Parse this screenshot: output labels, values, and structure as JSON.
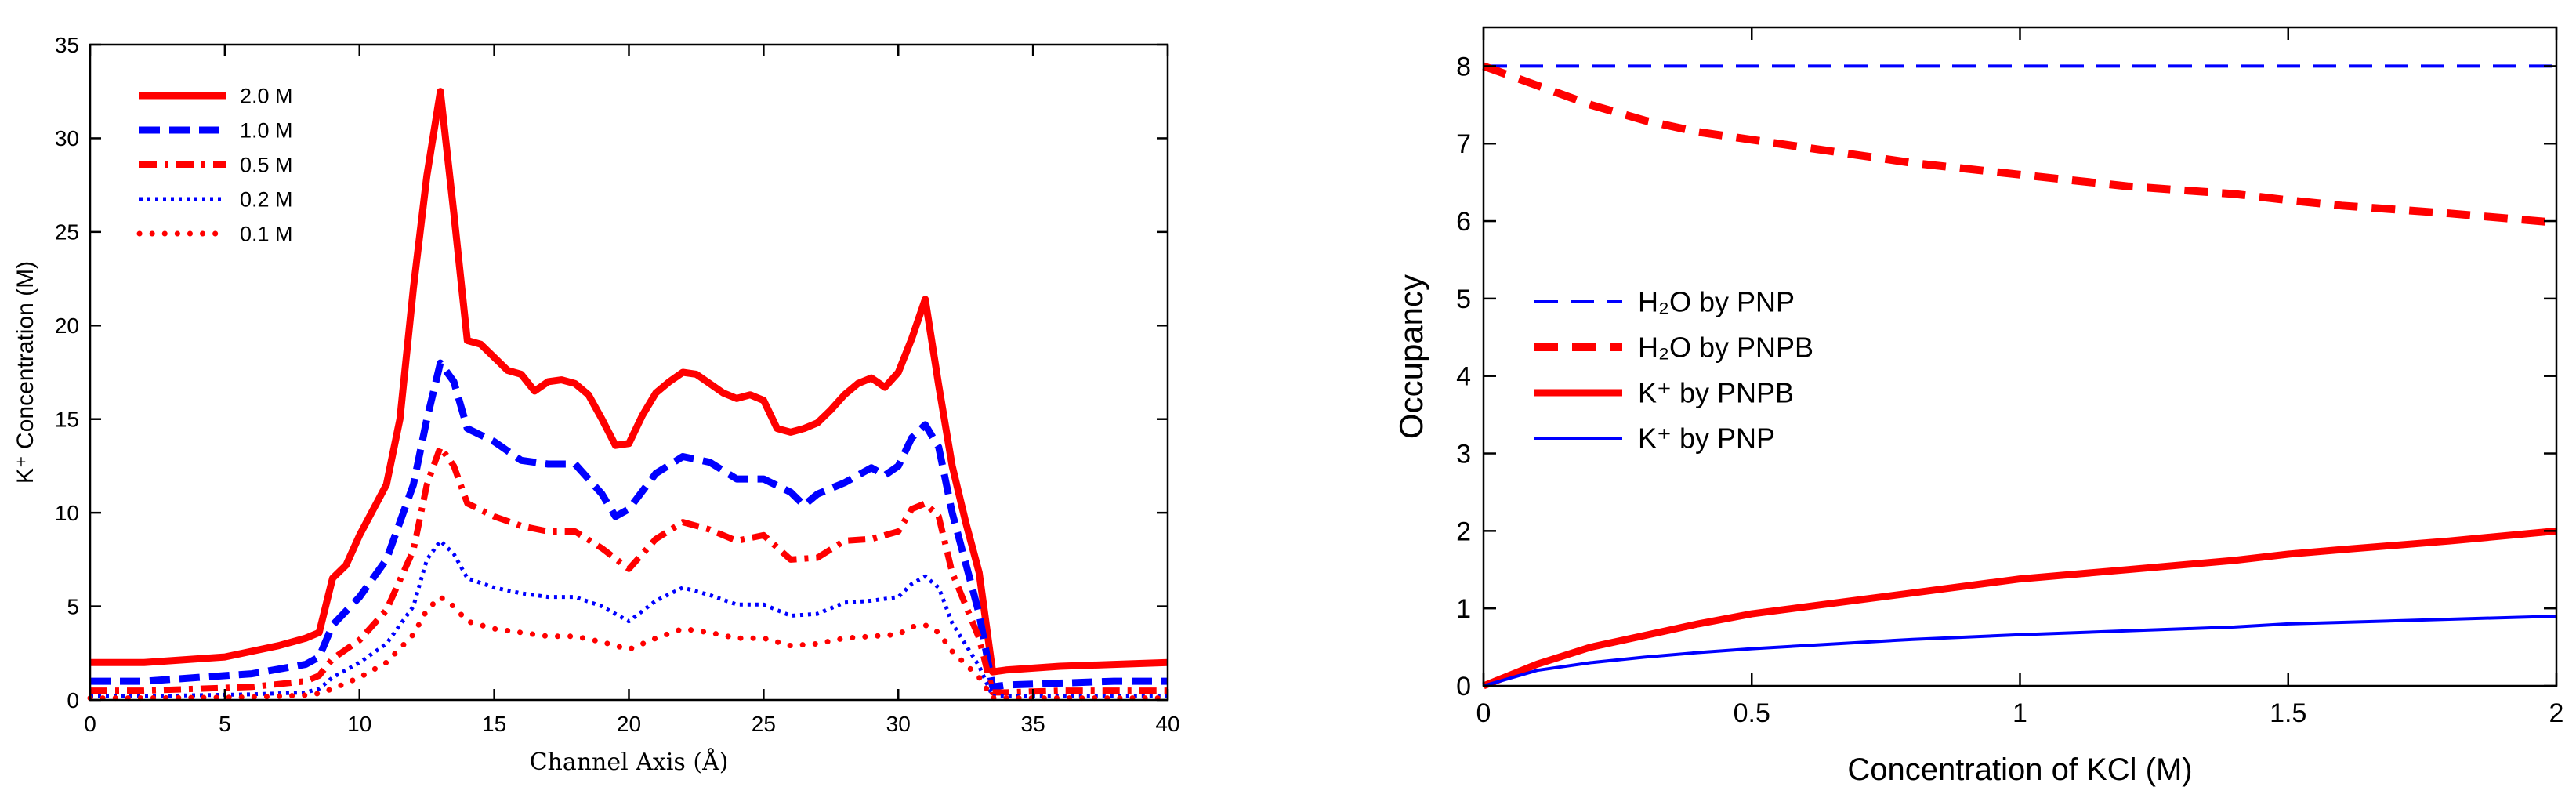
{
  "chart_data": [
    {
      "type": "line",
      "title": "",
      "xlabel": "Channel Axis (Å)",
      "ylabel": "K⁺ Concentration (M)",
      "xlim": [
        0,
        40
      ],
      "ylim": [
        0,
        35
      ],
      "xticks": [
        "0",
        "5",
        "10",
        "15",
        "20",
        "25",
        "30",
        "35",
        "40"
      ],
      "yticks": [
        "0",
        "5",
        "10",
        "15",
        "20",
        "25",
        "30",
        "35"
      ],
      "grid": false,
      "legend_position": "top-left",
      "series": [
        {
          "name": "2.0 M",
          "color": "#ff0000",
          "style": "solid",
          "x": [
            0,
            2,
            4,
            5,
            6,
            7,
            8,
            8.5,
            9,
            9.5,
            10,
            11,
            11.5,
            12,
            12.5,
            13,
            13.5,
            14,
            14.5,
            15,
            15.5,
            16,
            16.5,
            17,
            17.5,
            18,
            18.5,
            19,
            19.5,
            20,
            20.5,
            21,
            21.5,
            22,
            22.5,
            23,
            23.5,
            24,
            24.5,
            25,
            25.5,
            26,
            26.5,
            27,
            27.5,
            28,
            28.5,
            29,
            29.5,
            30,
            30.5,
            31,
            31.5,
            32,
            32.5,
            33,
            33.5,
            34,
            36,
            38,
            40
          ],
          "y": [
            2,
            2,
            2.2,
            2.3,
            2.6,
            2.9,
            3.3,
            3.6,
            6.5,
            7.2,
            8.8,
            11.5,
            15,
            22,
            28,
            32.5,
            26,
            19.2,
            19,
            18.3,
            17.6,
            17.4,
            16.5,
            17,
            17.1,
            16.9,
            16.3,
            15,
            13.6,
            13.7,
            15.2,
            16.4,
            17,
            17.5,
            17.4,
            16.9,
            16.4,
            16.1,
            16.3,
            16,
            14.5,
            14.3,
            14.5,
            14.8,
            15.5,
            16.3,
            16.9,
            17.2,
            16.7,
            17.5,
            19.3,
            21.4,
            16.8,
            12.5,
            9.5,
            6.8,
            1.5,
            1.6,
            1.8,
            1.9,
            2
          ]
        },
        {
          "name": "1.0 M",
          "color": "#0000ff",
          "style": "dashed",
          "x": [
            0,
            2,
            4,
            6,
            8,
            8.5,
            9,
            10,
            11,
            12,
            12.5,
            13,
            13.5,
            14,
            15,
            16,
            17,
            18,
            19,
            19.5,
            20,
            21,
            22,
            23,
            24,
            25,
            26,
            26.5,
            27,
            28,
            29,
            29.5,
            30,
            30.5,
            31,
            31.5,
            32,
            33,
            33.5,
            34,
            36,
            38,
            40
          ],
          "y": [
            1,
            1,
            1.2,
            1.4,
            1.9,
            2.3,
            4,
            5.5,
            7.5,
            11.5,
            15,
            18,
            17,
            14.5,
            13.8,
            12.8,
            12.6,
            12.6,
            11,
            9.8,
            10.2,
            12.1,
            13,
            12.7,
            11.8,
            11.8,
            11.1,
            10.4,
            11,
            11.6,
            12.4,
            12,
            12.5,
            14,
            14.7,
            13.5,
            10,
            4.6,
            0.7,
            0.8,
            0.9,
            1,
            1
          ]
        },
        {
          "name": "0.5 M",
          "color": "#ff0000",
          "style": "dashdot",
          "x": [
            0,
            2,
            4,
            6,
            8,
            8.5,
            9,
            10,
            11,
            12,
            12.5,
            13,
            13.5,
            14,
            15,
            16,
            17,
            18,
            19,
            20,
            21,
            22,
            23,
            24,
            25,
            26,
            27,
            28,
            29,
            30,
            30.5,
            31,
            31.5,
            32,
            33,
            33.5,
            34,
            36,
            38,
            40
          ],
          "y": [
            0.5,
            0.5,
            0.6,
            0.7,
            1,
            1.3,
            2.2,
            3.2,
            4.8,
            8,
            11.5,
            13.5,
            12.5,
            10.5,
            9.8,
            9.3,
            9,
            9,
            8.1,
            7,
            8.6,
            9.5,
            9.1,
            8.5,
            8.8,
            7.5,
            7.6,
            8.5,
            8.6,
            9,
            10.2,
            10.5,
            9.8,
            6.8,
            3.3,
            0.4,
            0.4,
            0.5,
            0.5,
            0.5
          ]
        },
        {
          "name": "0.2 M",
          "color": "#0000ff",
          "style": "dotted",
          "x": [
            0,
            2,
            4,
            6,
            8,
            8.5,
            9,
            10,
            11,
            12,
            12.5,
            13,
            13.5,
            14,
            15,
            16,
            17,
            18,
            19,
            20,
            21,
            22,
            23,
            24,
            25,
            26,
            27,
            28,
            29,
            30,
            30.5,
            31,
            31.5,
            32,
            33,
            33.5,
            34,
            36,
            38,
            40
          ],
          "y": [
            0.2,
            0.2,
            0.25,
            0.3,
            0.4,
            0.6,
            1.2,
            2,
            3,
            5,
            7.5,
            8.5,
            7.8,
            6.5,
            6,
            5.7,
            5.5,
            5.5,
            5,
            4.2,
            5.3,
            6,
            5.6,
            5.1,
            5.1,
            4.5,
            4.6,
            5.2,
            5.3,
            5.5,
            6.2,
            6.6,
            6,
            4.1,
            1.8,
            0.2,
            0.2,
            0.2,
            0.2,
            0.2
          ]
        },
        {
          "name": "0.1 M",
          "color": "#ff0000",
          "style": "dots",
          "x": [
            0,
            2,
            4,
            6,
            8,
            8.5,
            9,
            10,
            11,
            12,
            12.5,
            13,
            13.5,
            14,
            15,
            16,
            17,
            18,
            19,
            20,
            21,
            22,
            23,
            24,
            25,
            26,
            27,
            28,
            29,
            30,
            30.5,
            31,
            31.5,
            32,
            33,
            33.5,
            34,
            36,
            38,
            40
          ],
          "y": [
            0.1,
            0.1,
            0.12,
            0.15,
            0.25,
            0.35,
            0.6,
            1.2,
            2,
            3.5,
            4.8,
            5.5,
            5,
            4.2,
            3.8,
            3.6,
            3.4,
            3.4,
            3.1,
            2.7,
            3.3,
            3.8,
            3.6,
            3.3,
            3.3,
            2.9,
            3,
            3.3,
            3.4,
            3.5,
            3.9,
            4,
            3.6,
            2.6,
            1.2,
            0.1,
            0.1,
            0.1,
            0.1,
            0.1
          ]
        }
      ]
    },
    {
      "type": "line",
      "title": "",
      "xlabel": "Concentration of KCl (M)",
      "ylabel": "Occupancy",
      "xlim": [
        0,
        2
      ],
      "ylim": [
        0,
        8.5
      ],
      "xticks": [
        "0",
        "0.5",
        "1",
        "1.5",
        "2"
      ],
      "yticks": [
        "0",
        "1",
        "2",
        "3",
        "4",
        "5",
        "6",
        "7",
        "8"
      ],
      "grid": false,
      "legend_position": "center-left",
      "series": [
        {
          "name": "H₂O by PNP",
          "color": "#0000ff",
          "style": "dashed-thin",
          "x": [
            0,
            0.1,
            0.2,
            0.5,
            1,
            1.5,
            2
          ],
          "y": [
            8,
            8,
            8,
            8,
            8,
            8,
            8
          ]
        },
        {
          "name": "H₂O by PNPB",
          "color": "#ff0000",
          "style": "dashed-thick",
          "x": [
            0,
            0.1,
            0.2,
            0.3,
            0.4,
            0.5,
            0.6,
            0.8,
            1,
            1.2,
            1.4,
            1.5,
            1.6,
            1.8,
            2
          ],
          "y": [
            8,
            7.75,
            7.5,
            7.3,
            7.15,
            7.05,
            6.95,
            6.75,
            6.6,
            6.45,
            6.35,
            6.27,
            6.2,
            6.1,
            5.98
          ]
        },
        {
          "name": "K⁺ by PNPB",
          "color": "#ff0000",
          "style": "solid-thick",
          "x": [
            0,
            0.1,
            0.2,
            0.3,
            0.4,
            0.5,
            0.6,
            0.8,
            1,
            1.2,
            1.4,
            1.5,
            1.6,
            1.8,
            2
          ],
          "y": [
            0,
            0.28,
            0.5,
            0.65,
            0.8,
            0.93,
            1.02,
            1.2,
            1.38,
            1.5,
            1.62,
            1.7,
            1.76,
            1.87,
            2
          ]
        },
        {
          "name": "K⁺ by PNP",
          "color": "#0000ff",
          "style": "solid-thin",
          "x": [
            0,
            0.1,
            0.2,
            0.3,
            0.4,
            0.5,
            0.6,
            0.8,
            1,
            1.2,
            1.4,
            1.5,
            1.6,
            1.8,
            2
          ],
          "y": [
            0,
            0.2,
            0.3,
            0.37,
            0.43,
            0.48,
            0.52,
            0.6,
            0.66,
            0.71,
            0.76,
            0.8,
            0.82,
            0.86,
            0.9
          ]
        }
      ]
    }
  ]
}
